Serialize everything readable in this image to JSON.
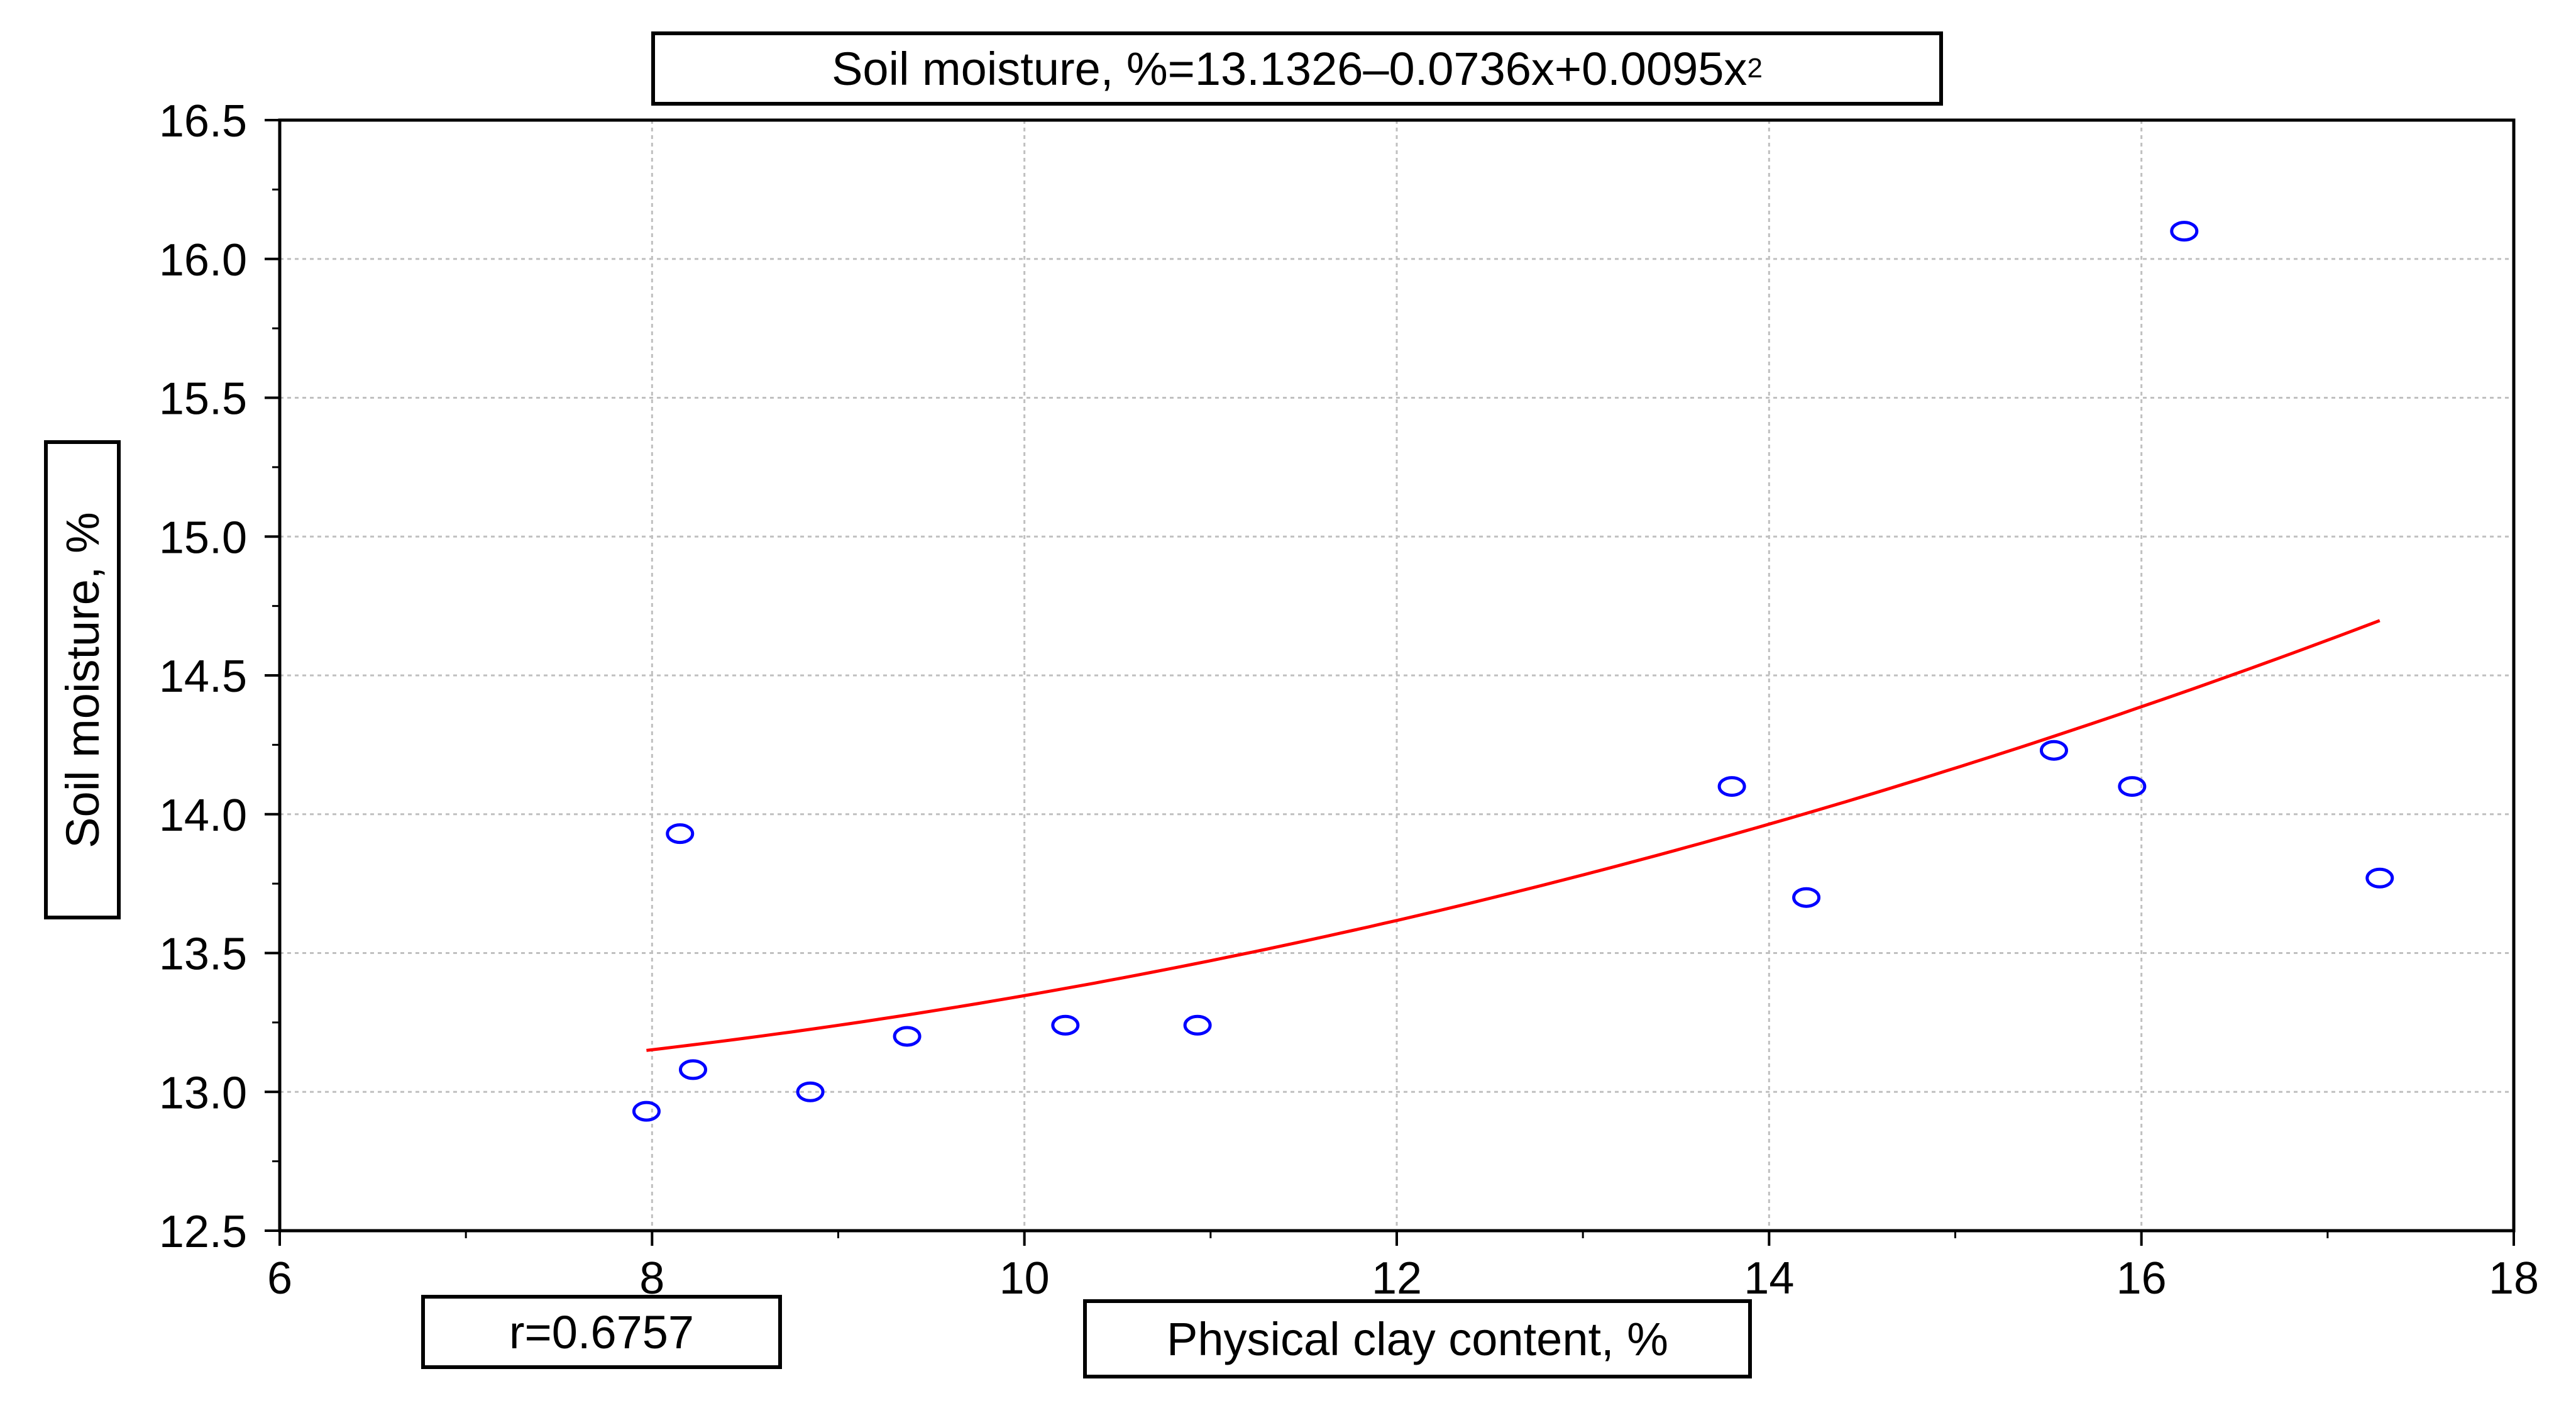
{
  "chart_data": {
    "type": "scatter",
    "title_main": "Soil moisture, %=13.1326–0.0736x+0.0095x",
    "title_superscript": "2",
    "xlabel": "Physical clay content, %",
    "ylabel": "Soil moisture, %",
    "annotation": "r=0.6757",
    "xlim": [
      6,
      18
    ],
    "ylim": [
      12.5,
      16.5
    ],
    "x_ticks": [
      "6",
      "8",
      "10",
      "12",
      "14",
      "16",
      "18"
    ],
    "y_ticks": [
      "12.5",
      "13.0",
      "13.5",
      "14.0",
      "14.5",
      "15.0",
      "15.5",
      "16.0",
      "16.5"
    ],
    "grid": true,
    "series": [
      {
        "marker": "open-circle",
        "color": "#0000ff",
        "points": [
          {
            "x": 7.97,
            "y": 12.93
          },
          {
            "x": 8.15,
            "y": 13.93
          },
          {
            "x": 8.22,
            "y": 13.08
          },
          {
            "x": 8.85,
            "y": 13.0
          },
          {
            "x": 9.37,
            "y": 13.2
          },
          {
            "x": 10.22,
            "y": 13.24
          },
          {
            "x": 10.93,
            "y": 13.24
          },
          {
            "x": 13.8,
            "y": 14.1
          },
          {
            "x": 14.2,
            "y": 13.7
          },
          {
            "x": 15.53,
            "y": 14.23
          },
          {
            "x": 15.95,
            "y": 14.1
          },
          {
            "x": 16.23,
            "y": 16.1
          },
          {
            "x": 17.28,
            "y": 13.77
          }
        ]
      }
    ],
    "fit_curve": {
      "color": "#ff0000",
      "x_range": [
        7.97,
        17.28
      ],
      "coefficients": {
        "a": 13.1326,
        "b": -0.0736,
        "c": 0.0095
      }
    },
    "colors": {
      "grid": "#c0c0c0",
      "axis": "#000000",
      "tick_minor": "#000000"
    }
  }
}
